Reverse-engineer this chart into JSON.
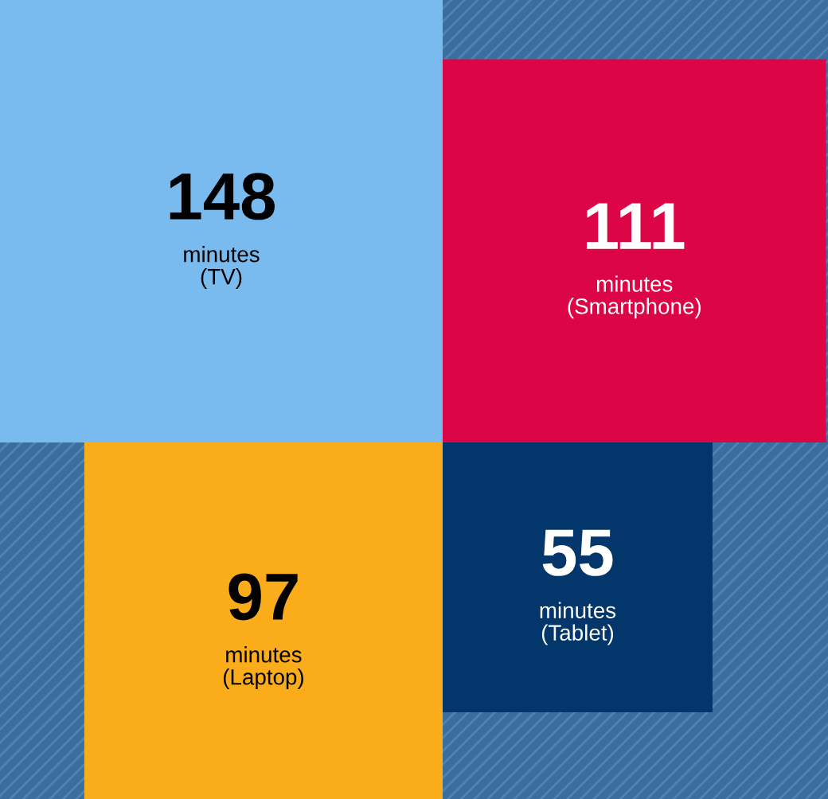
{
  "chart_data": {
    "type": "other",
    "categories": [
      "(TV)",
      "(Smartphone)",
      "(Laptop)",
      "(Tablet)"
    ],
    "values": [
      148,
      111,
      97,
      55
    ],
    "colors": [
      "#79bbef",
      "#dc0545",
      "#fbac1b",
      "#03376b"
    ],
    "ylabel": "minutes",
    "data_labels": true
  }
}
